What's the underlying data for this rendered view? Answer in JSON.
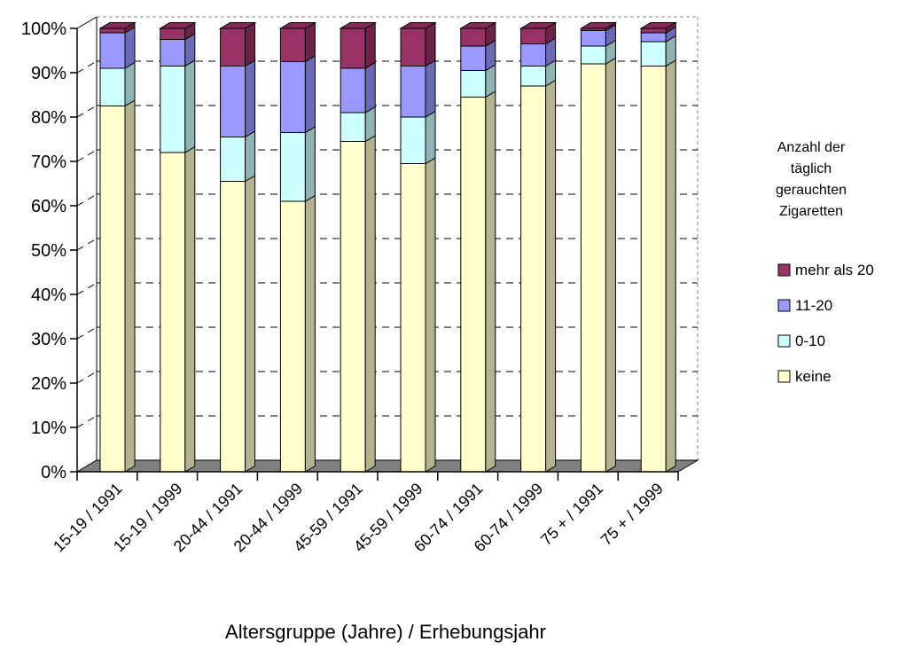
{
  "chart_data": {
    "type": "bar",
    "stacked": "percent",
    "three_d": true,
    "categories": [
      "15-19 / 1991",
      "15-19 / 1999",
      "20-44 / 1991",
      "20-44 / 1999",
      "45-59 / 1991",
      "45-59 / 1999",
      "60-74 / 1991",
      "60-74 / 1999",
      "75 + / 1991",
      "75 + / 1999"
    ],
    "series": [
      {
        "name": "keine",
        "color": "#ffffcc",
        "values": [
          82.5,
          72,
          65.5,
          61,
          74.5,
          69.5,
          84.5,
          87,
          92,
          91.5
        ]
      },
      {
        "name": "0-10",
        "color": "#ccffff",
        "values": [
          8.5,
          19.5,
          10,
          15.5,
          6.5,
          10.5,
          6,
          4.5,
          4,
          5.5
        ]
      },
      {
        "name": "11-20",
        "color": "#9999ff",
        "values": [
          8,
          6,
          16,
          16,
          10,
          11.5,
          5.5,
          5,
          3.5,
          2
        ]
      },
      {
        "name": "mehr als 20",
        "color": "#993366",
        "values": [
          1,
          2.5,
          8.5,
          7.5,
          9,
          8.5,
          4,
          3.5,
          0.5,
          1
        ]
      }
    ],
    "xlabel": "Altersgruppe (Jahre) / Erhebungsjahr",
    "ylabel": "",
    "ylim": [
      0,
      100
    ],
    "yticks": [
      "0%",
      "10%",
      "20%",
      "30%",
      "40%",
      "50%",
      "60%",
      "70%",
      "80%",
      "90%",
      "100%"
    ],
    "legend": {
      "title_lines": [
        "Anzahl der",
        "täglich",
        "gerauchten",
        "Zigaretten"
      ],
      "placement": "right",
      "entries_order": [
        "mehr als 20",
        "11-20",
        "0-10",
        "keine"
      ]
    },
    "grid": {
      "horizontal": true,
      "style": "dashed"
    }
  }
}
